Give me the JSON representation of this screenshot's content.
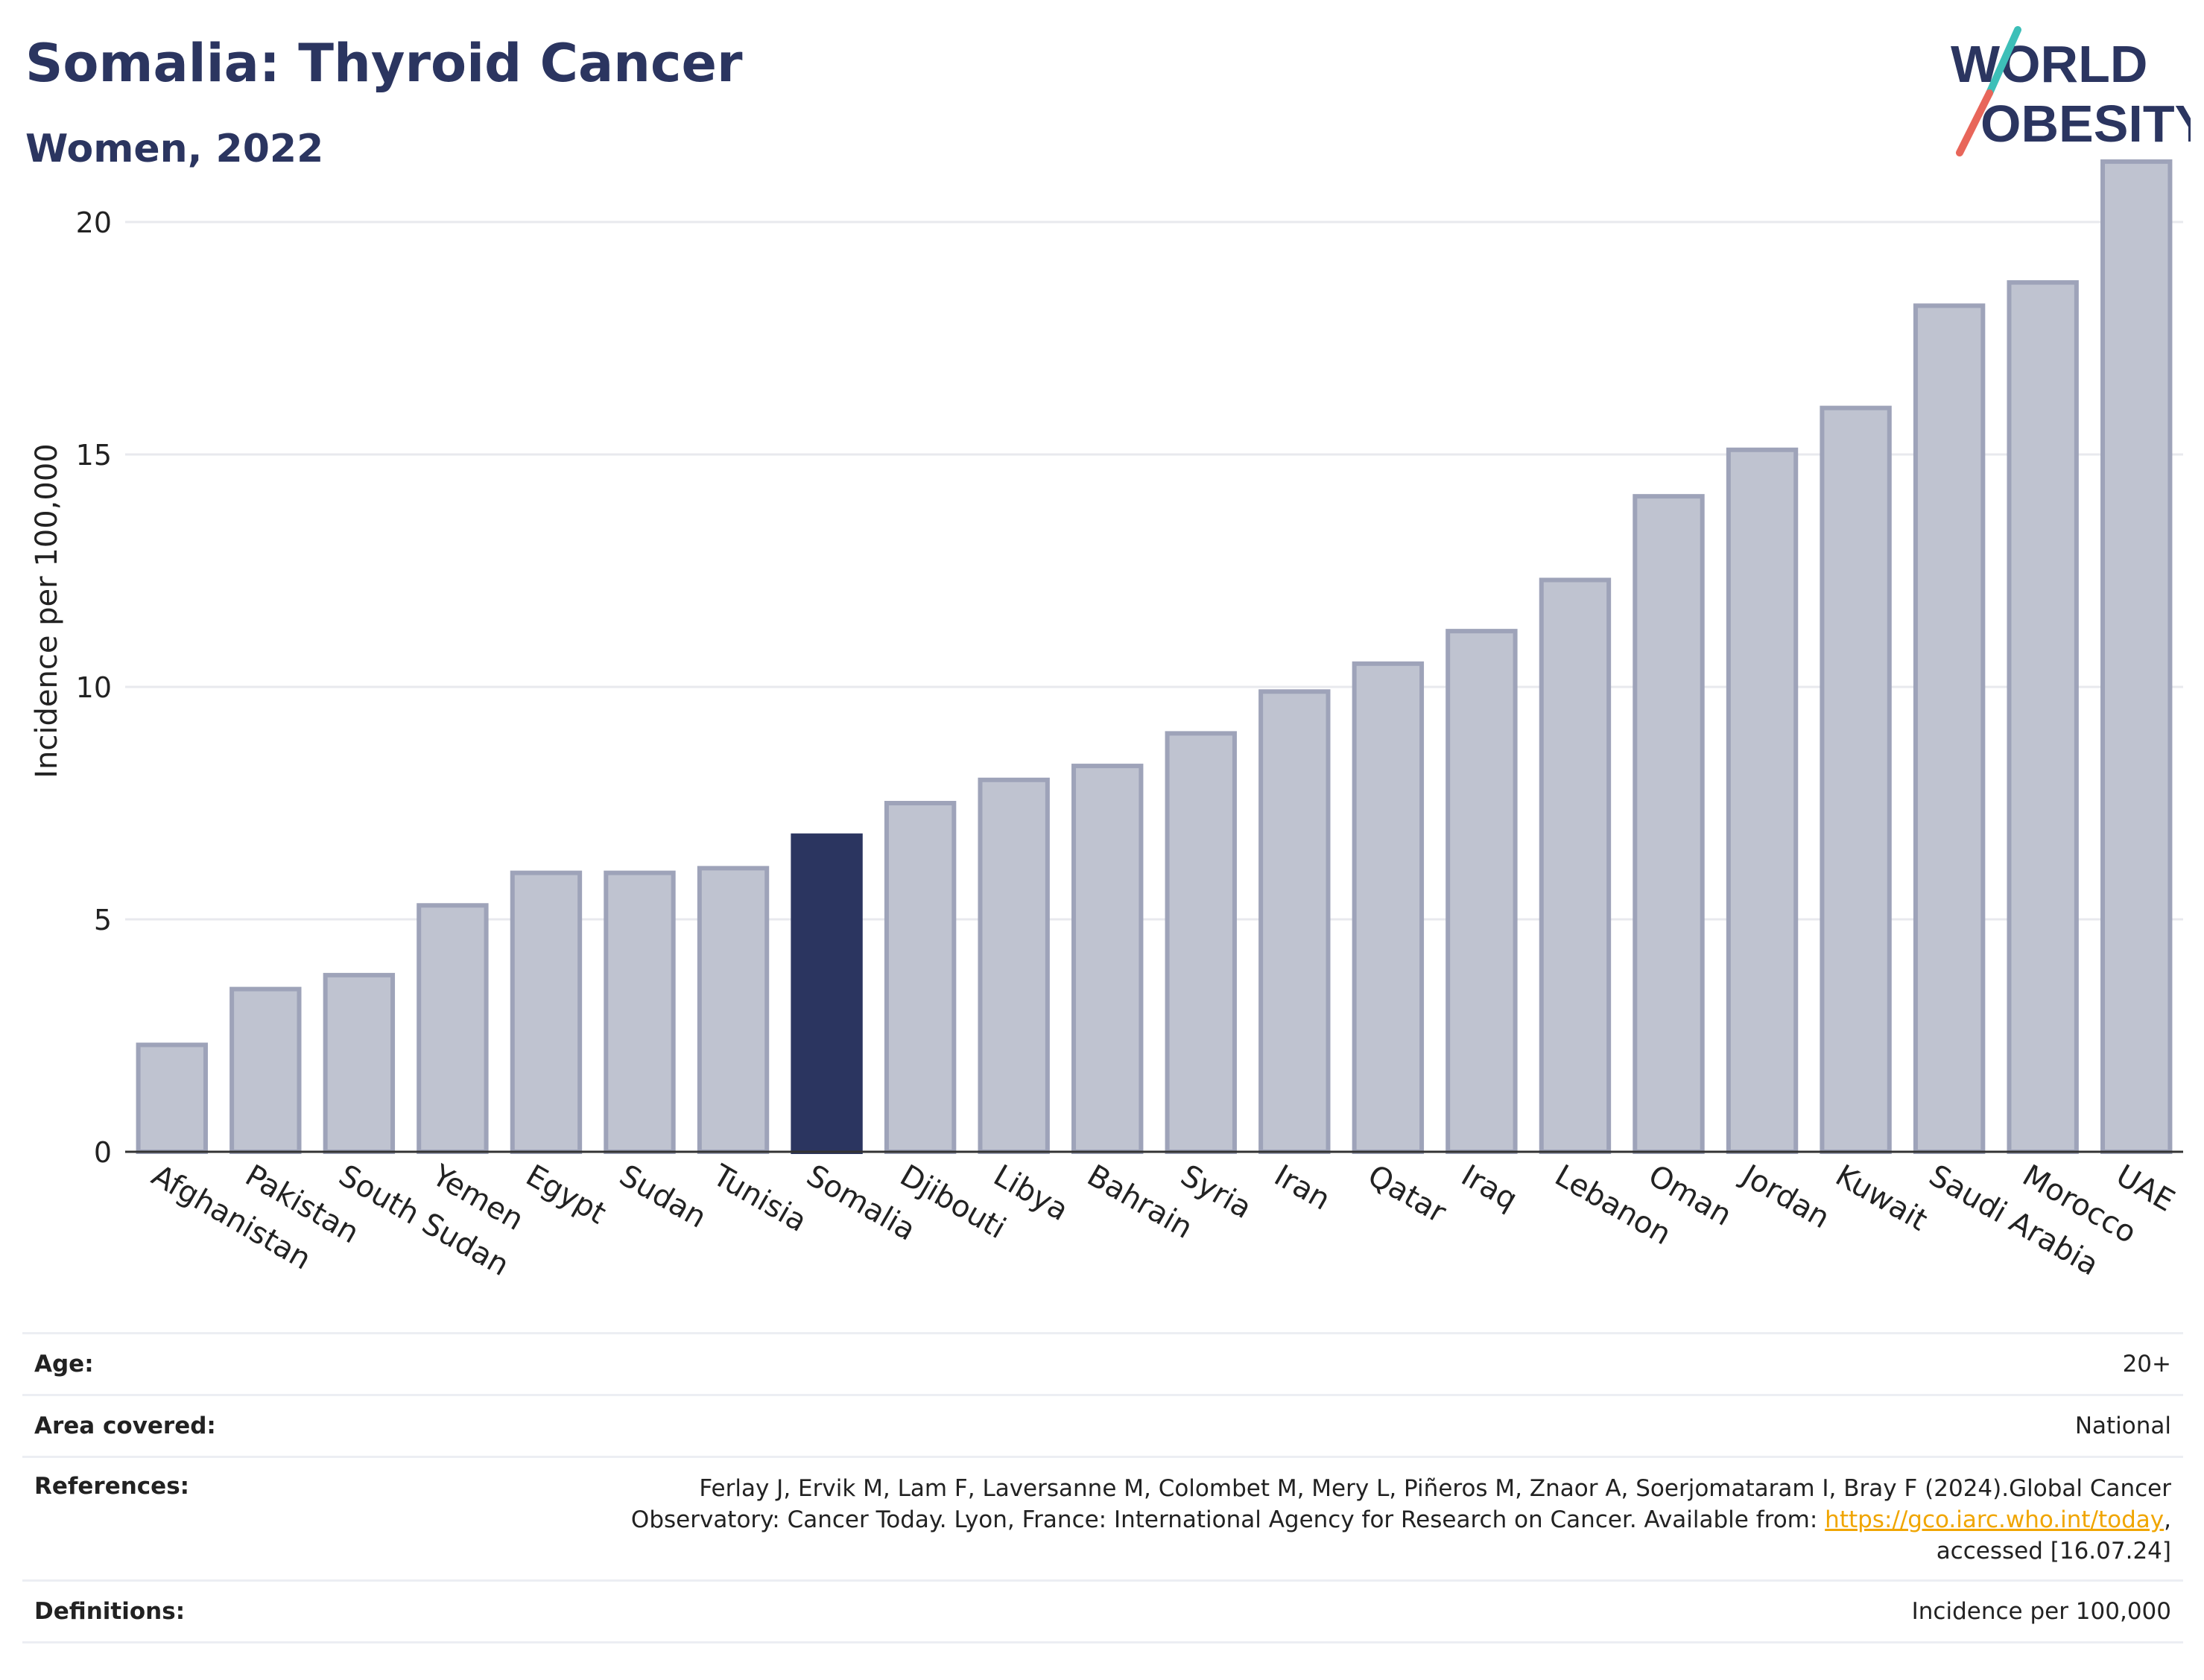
{
  "header": {
    "title": "Somalia: Thyroid Cancer",
    "subtitle": "Women, 2022"
  },
  "logo": {
    "line1": "WORLD",
    "line2": "OBESITY",
    "colors": {
      "text": "#2b3560",
      "slash_top": "#3dbfb8",
      "slash_bottom": "#e8665a"
    }
  },
  "colors": {
    "bar_fill": "#bfc3d0",
    "bar_stroke": "#9ea3b9",
    "highlight_fill": "#2b3560",
    "grid": "#e8e9ee",
    "axis_text": "#222222"
  },
  "chart_data": {
    "type": "bar",
    "ylabel": "Incidence per 100,000",
    "ylim": [
      0,
      22
    ],
    "yticks": [
      0,
      5,
      10,
      15,
      20
    ],
    "grid": true,
    "highlight": "Somalia",
    "categories": [
      "Afghanistan",
      "Pakistan",
      "South Sudan",
      "Yemen",
      "Egypt",
      "Sudan",
      "Tunisia",
      "Somalia",
      "Djibouti",
      "Libya",
      "Bahrain",
      "Syria",
      "Iran",
      "Qatar",
      "Iraq",
      "Lebanon",
      "Oman",
      "Jordan",
      "Kuwait",
      "Saudi Arabia",
      "Morocco",
      "UAE"
    ],
    "values": [
      2.3,
      3.5,
      3.8,
      5.3,
      6.0,
      6.0,
      6.1,
      6.8,
      7.5,
      8.0,
      8.3,
      9.0,
      9.9,
      10.5,
      11.2,
      12.3,
      14.1,
      15.1,
      16.0,
      18.2,
      18.7,
      21.3
    ]
  },
  "info": {
    "age": {
      "label": "Age:",
      "value": "20+"
    },
    "area": {
      "label": "Area covered:",
      "value": "National"
    },
    "references": {
      "label": "References:",
      "line1": "Ferlay J, Ervik M, Lam F, Laversanne M, Colombet M, Mery L, Piñeros M, Znaor A, Soerjomataram I, Bray F (2024).Global Cancer",
      "line2_pre": "Observatory: Cancer Today. Lyon, France: International Agency for Research on Cancer. Available from: ",
      "link": "https://gco.iarc.who.int/today",
      "line2_post": ",",
      "line3": "accessed [16.07.24]"
    },
    "definitions": {
      "label": "Definitions:",
      "value": "Incidence per 100,000"
    }
  }
}
